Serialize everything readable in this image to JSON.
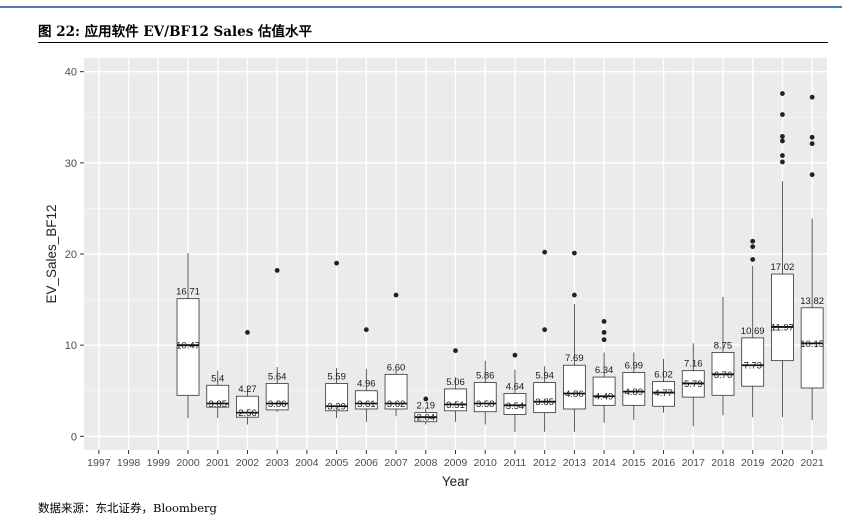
{
  "figure": {
    "title": "图 22:  应用软件  EV/BF12 Sales 估值水平",
    "source": "数据来源：东北证券，Bloomberg"
  },
  "chart_data": {
    "type": "box",
    "xlabel": "Year",
    "ylabel": "EV_Sales_BF12",
    "ylim": [
      -1.5,
      41.5
    ],
    "yticks": [
      0,
      10,
      20,
      30,
      40
    ],
    "grid": true,
    "categories": [
      "1997",
      "1998",
      "1999",
      "2000",
      "2001",
      "2002",
      "2003",
      "2004",
      "2005",
      "2006",
      "2007",
      "2008",
      "2009",
      "2010",
      "2011",
      "2012",
      "2013",
      "2014",
      "2015",
      "2016",
      "2017",
      "2018",
      "2019",
      "2020",
      "2021"
    ],
    "boxes": [
      {
        "year": "2000",
        "wlo": 2.0,
        "q1": 4.5,
        "med": 10.0,
        "q3": 15.1,
        "whi": 20.1,
        "mean_label": "10.47",
        "top_label": "16.71",
        "outliers": []
      },
      {
        "year": "2001",
        "wlo": 2.0,
        "q1": 3.2,
        "med": 3.6,
        "q3": 5.6,
        "whi": 7.2,
        "mean_label": "3.85",
        "top_label": "5.4",
        "outliers": []
      },
      {
        "year": "2002",
        "wlo": 1.3,
        "q1": 2.1,
        "med": 2.6,
        "q3": 4.4,
        "whi": 5.5,
        "mean_label": "2.56",
        "top_label": "4.27",
        "outliers": [
          11.4
        ]
      },
      {
        "year": "2003",
        "wlo": 2.7,
        "q1": 2.9,
        "med": 3.6,
        "q3": 5.8,
        "whi": 7.6,
        "mean_label": "3.86",
        "top_label": "5.64",
        "outliers": [
          18.2
        ]
      },
      {
        "year": "2005",
        "wlo": 2.0,
        "q1": 2.8,
        "med": 3.3,
        "q3": 5.8,
        "whi": 7.5,
        "mean_label": "3.29",
        "top_label": "5.59",
        "outliers": [
          19.0
        ]
      },
      {
        "year": "2006",
        "wlo": 1.6,
        "q1": 3.0,
        "med": 3.6,
        "q3": 5.0,
        "whi": 7.4,
        "mean_label": "3.61",
        "top_label": "4.96",
        "outliers": [
          11.7
        ]
      },
      {
        "year": "2007",
        "wlo": 2.2,
        "q1": 3.0,
        "med": 3.6,
        "q3": 6.8,
        "whi": 7.3,
        "mean_label": "3.62",
        "top_label": "6.60",
        "outliers": [
          15.5
        ]
      },
      {
        "year": "2008",
        "wlo": 1.3,
        "q1": 1.6,
        "med": 2.1,
        "q3": 2.6,
        "whi": 3.0,
        "mean_label": "2.04",
        "top_label": "2.19",
        "outliers": [
          4.1
        ]
      },
      {
        "year": "2009",
        "wlo": 1.6,
        "q1": 2.8,
        "med": 3.5,
        "q3": 5.2,
        "whi": 6.5,
        "mean_label": "3.51",
        "top_label": "5.06",
        "outliers": [
          9.4
        ]
      },
      {
        "year": "2010",
        "wlo": 1.3,
        "q1": 2.7,
        "med": 3.6,
        "q3": 5.9,
        "whi": 8.3,
        "mean_label": "3.58",
        "top_label": "5.86",
        "outliers": []
      },
      {
        "year": "2011",
        "wlo": 0.5,
        "q1": 2.4,
        "med": 3.4,
        "q3": 4.7,
        "whi": 7.3,
        "mean_label": "3.54",
        "top_label": "4.64",
        "outliers": [
          8.9
        ]
      },
      {
        "year": "2012",
        "wlo": 0.5,
        "q1": 2.6,
        "med": 3.8,
        "q3": 5.9,
        "whi": 7.7,
        "mean_label": "3.85",
        "top_label": "5.94",
        "outliers": [
          20.2,
          11.7
        ]
      },
      {
        "year": "2013",
        "wlo": 0.5,
        "q1": 3.0,
        "med": 4.7,
        "q3": 7.8,
        "whi": 14.5,
        "mean_label": "4.86",
        "top_label": "7.69",
        "outliers": [
          20.1,
          15.5
        ]
      },
      {
        "year": "2014",
        "wlo": 1.5,
        "q1": 3.4,
        "med": 4.4,
        "q3": 6.5,
        "whi": 9.2,
        "mean_label": "4.49",
        "top_label": "6.34",
        "outliers": [
          12.6,
          11.4,
          10.6
        ]
      },
      {
        "year": "2015",
        "wlo": 1.8,
        "q1": 3.4,
        "med": 4.9,
        "q3": 7.0,
        "whi": 9.2,
        "mean_label": "4.89",
        "top_label": "6.99",
        "outliers": []
      },
      {
        "year": "2016",
        "wlo": 2.6,
        "q1": 3.3,
        "med": 4.8,
        "q3": 6.0,
        "whi": 8.5,
        "mean_label": "4.77",
        "top_label": "6.02",
        "outliers": []
      },
      {
        "year": "2017",
        "wlo": 1.1,
        "q1": 4.3,
        "med": 5.8,
        "q3": 7.2,
        "whi": 10.2,
        "mean_label": "5.79",
        "top_label": "7.16",
        "outliers": []
      },
      {
        "year": "2018",
        "wlo": 2.3,
        "q1": 4.5,
        "med": 6.8,
        "q3": 9.2,
        "whi": 15.3,
        "mean_label": "6.76",
        "top_label": "8.75",
        "outliers": []
      },
      {
        "year": "2019",
        "wlo": 2.1,
        "q1": 5.5,
        "med": 7.8,
        "q3": 10.8,
        "whi": 18.7,
        "mean_label": "7.73",
        "top_label": "10.69",
        "outliers": [
          21.4,
          20.8,
          19.4
        ]
      },
      {
        "year": "2020",
        "wlo": 2.1,
        "q1": 8.3,
        "med": 12.0,
        "q3": 17.8,
        "whi": 28.0,
        "mean_label": "11.97",
        "top_label": "17.02",
        "outliers": [
          37.6,
          35.3,
          32.9,
          32.4,
          30.8,
          30.1
        ]
      },
      {
        "year": "2021",
        "wlo": 1.8,
        "q1": 5.3,
        "med": 10.2,
        "q3": 14.1,
        "whi": 23.9,
        "mean_label": "10.15",
        "top_label": "13.82",
        "outliers": [
          37.2,
          32.8,
          32.1,
          28.7
        ]
      }
    ]
  }
}
